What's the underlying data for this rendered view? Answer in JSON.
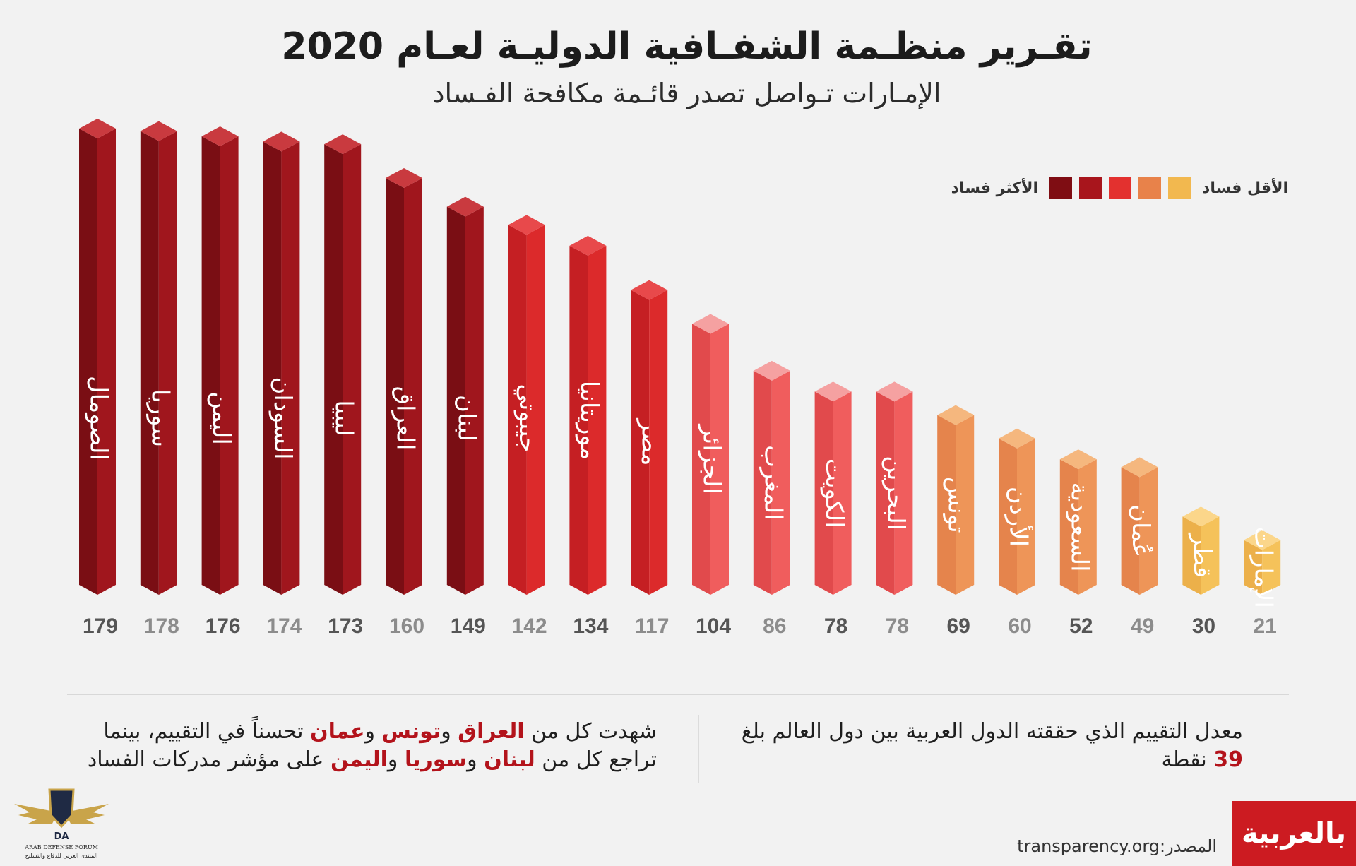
{
  "title": "تقـرير منظـمة الشفـافية الدوليـة لعـام 2020",
  "subtitle": "الإمـارات تـواصل تصدر قائـمة مكافحة الفـساد",
  "legend": {
    "low_label": "الأقل فساد",
    "high_label": "الأكثر فساد",
    "colors": [
      "#f2b84f",
      "#e8824a",
      "#e3312f",
      "#a8151c",
      "#7f0d13"
    ]
  },
  "chart_data": {
    "type": "bar",
    "title": "تقـرير منظـمة الشفـافية الدوليـة لعـام 2020",
    "subtitle": "الإمـارات تـواصل تصدر قائـمة مكافحة الفـساد",
    "categories": [
      "الصومال",
      "سوريا",
      "اليمن",
      "السودان",
      "ليبيا",
      "العراق",
      "لبنان",
      "جيبوتي",
      "موريتانيا",
      "مصر",
      "الجزائر",
      "المغرب",
      "الكويت",
      "البحرين",
      "تونس",
      "الأردن",
      "السعودية",
      "عُمان",
      "قطر",
      "الإمارات"
    ],
    "values": [
      179,
      178,
      176,
      174,
      173,
      160,
      149,
      142,
      134,
      117,
      104,
      86,
      78,
      78,
      69,
      60,
      52,
      49,
      30,
      21
    ],
    "color_levels": [
      5,
      5,
      5,
      5,
      5,
      5,
      5,
      4,
      4,
      4,
      3,
      3,
      3,
      3,
      2,
      2,
      2,
      2,
      1,
      1
    ],
    "legend": [
      "الأقل فساد",
      "الأكثر فساد"
    ],
    "grid": false,
    "legend_position": "top-right"
  },
  "notes": {
    "left": {
      "l1": "شهدت كل من ",
      "iraq": "العراق",
      "and1": " و",
      "tunisia": "تونس",
      "and2": " و",
      "oman": "عمان",
      "l1_end": " تحسناً في التقييم، بينما",
      "l2": "تراجع كل من ",
      "lebanon": "لبنان",
      "and3": " و",
      "syria": "سوريا",
      "and4": " و",
      "yemen": "اليمن",
      "l2_end": " على مؤشر مدركات الفساد"
    },
    "right": {
      "line1": "معدل التقييم الذي حققته الدول العربية بين دول العالم بلغ",
      "value": "39",
      "unit": " نقطة"
    }
  },
  "source": "المصدر:transparency.org",
  "brand": "بالعربية",
  "forum_logo": {
    "initials": "DA",
    "name_en": "ARAB DEFENSE FORUM",
    "name_ar": "المنتدى العربي للدفاع والتسليح"
  }
}
